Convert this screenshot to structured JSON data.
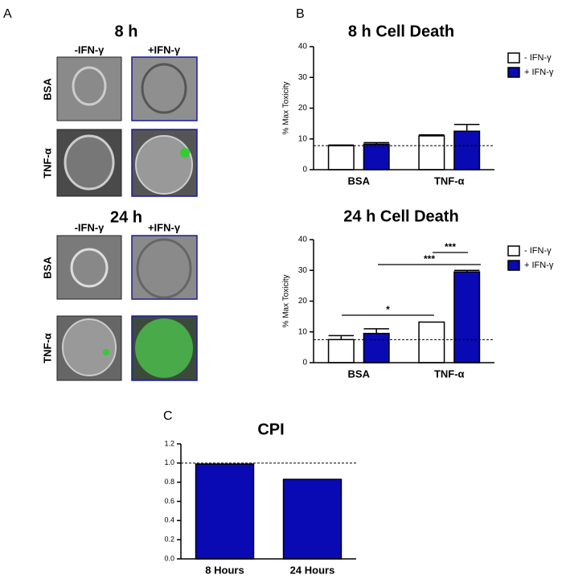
{
  "panel_a": {
    "label": "A",
    "sections": [
      {
        "title": "8 h",
        "columns": [
          "-IFN-γ",
          "+IFN-γ"
        ],
        "rows": [
          "BSA",
          "TNF-α"
        ]
      },
      {
        "title": "24 h",
        "columns": [
          "-IFN-γ",
          "+IFN-γ"
        ],
        "rows": [
          "BSA",
          "TNF-α"
        ]
      }
    ]
  },
  "panel_labels": [
    "B",
    "C"
  ],
  "chart_data": [
    {
      "type": "bar",
      "title": "8 h Cell Death",
      "ylabel": "% Max Toxicity",
      "categories": [
        "BSA",
        "TNF-α"
      ],
      "series": [
        {
          "name": "- IFN-γ",
          "color": "#ffffff",
          "values": [
            7.8,
            11
          ],
          "errors": [
            0.2,
            0.3
          ]
        },
        {
          "name": "+ IFN-γ",
          "color": "#0a0ab4",
          "values": [
            8.3,
            12.5
          ],
          "errors": [
            0.5,
            2.2
          ]
        }
      ],
      "ylim": [
        0,
        40
      ],
      "yticks": [
        0,
        10,
        20,
        30,
        40
      ],
      "reference_line": 7.8,
      "legend": "right"
    },
    {
      "type": "bar",
      "title": "24 h Cell Death",
      "ylabel": "% Max Toxicity",
      "categories": [
        "BSA",
        "TNF-α"
      ],
      "series": [
        {
          "name": "- IFN-γ",
          "color": "#ffffff",
          "values": [
            7.5,
            13.2
          ],
          "errors": [
            1.3,
            0
          ]
        },
        {
          "name": "+ IFN-γ",
          "color": "#0a0ab4",
          "values": [
            9.5,
            29.5
          ],
          "errors": [
            1.5,
            0.5
          ]
        }
      ],
      "ylim": [
        0,
        40
      ],
      "yticks": [
        0,
        10,
        20,
        30,
        40
      ],
      "reference_line": 7.5,
      "legend": "right",
      "annotations": [
        "*",
        "***",
        "***"
      ]
    },
    {
      "type": "bar",
      "title": "CPI",
      "categories": [
        "8 Hours",
        "24 Hours"
      ],
      "values": [
        0.99,
        0.83
      ],
      "color": "#0a0ab4",
      "ylim": [
        0,
        1.2
      ],
      "yticks": [
        {
          "value": 0,
          "label": "0.0"
        },
        0.2,
        0.4,
        0.6,
        0.8,
        {
          "value": 1,
          "label": "1.0"
        },
        1.2
      ],
      "reference_line": 1
    }
  ]
}
